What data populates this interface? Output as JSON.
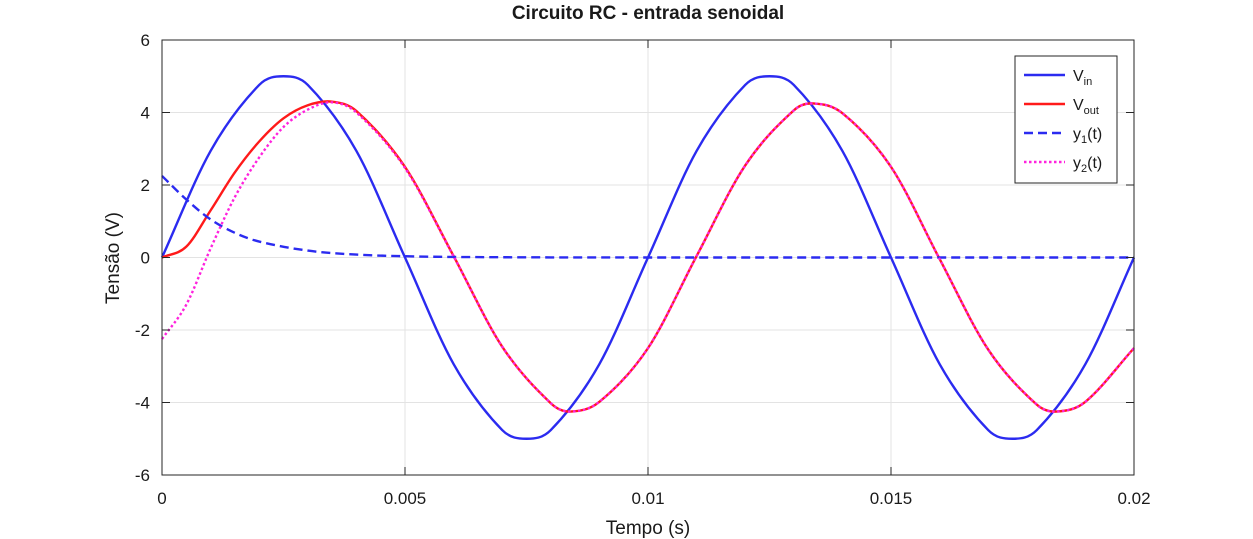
{
  "chart_data": {
    "type": "line",
    "title": "Circuito RC - entrada senoidal",
    "xlabel": "Tempo (s)",
    "ylabel": "Tensão (V)",
    "xlim": [
      0,
      0.02
    ],
    "ylim": [
      -6,
      6
    ],
    "xticks": [
      0,
      0.005,
      0.01,
      0.015,
      0.02
    ],
    "xtick_labels": [
      "0",
      "0.005",
      "0.01",
      "0.015",
      "0.02"
    ],
    "yticks": [
      -6,
      -4,
      -2,
      0,
      2,
      4,
      6
    ],
    "ytick_labels": [
      "-6",
      "-4",
      "-2",
      "0",
      "2",
      "4",
      "6"
    ],
    "grid": true,
    "legend_position": "top-right",
    "series": [
      {
        "key": "vin",
        "legend_main": "V",
        "legend_sub": "in",
        "legend_tail": "",
        "color": "#2b2bf0",
        "style": "solid",
        "x": [
          0,
          0.001,
          0.002,
          0.0025,
          0.003,
          0.004,
          0.005,
          0.006,
          0.007,
          0.0075,
          0.008,
          0.009,
          0.01,
          0.011,
          0.012,
          0.0125,
          0.013,
          0.014,
          0.015,
          0.016,
          0.017,
          0.0175,
          0.018,
          0.019,
          0.02
        ],
        "y": [
          0,
          2.94,
          4.76,
          5.0,
          4.76,
          2.94,
          0,
          -2.94,
          -4.76,
          -5.0,
          -4.76,
          -2.94,
          0,
          2.94,
          4.76,
          5.0,
          4.76,
          2.94,
          0,
          -2.94,
          -4.76,
          -5.0,
          -4.76,
          -2.94,
          0
        ]
      },
      {
        "key": "vout",
        "legend_main": "V",
        "legend_sub": "out",
        "legend_tail": "",
        "color": "#ff1a1a",
        "style": "solid",
        "x": [
          0,
          0.0005,
          0.001,
          0.0015,
          0.002,
          0.0025,
          0.003,
          0.0035,
          0.004,
          0.005,
          0.006,
          0.007,
          0.008,
          0.0084,
          0.009,
          0.01,
          0.011,
          0.012,
          0.013,
          0.0134,
          0.014,
          0.015,
          0.016,
          0.017,
          0.018,
          0.0184,
          0.019,
          0.02
        ],
        "y": [
          0,
          0.3,
          1.3,
          2.35,
          3.2,
          3.84,
          4.2,
          4.3,
          4.04,
          2.5,
          0.04,
          -2.46,
          -4.02,
          -4.25,
          -3.98,
          -2.5,
          0.04,
          2.54,
          4.06,
          4.25,
          3.98,
          2.5,
          -0.04,
          -2.54,
          -4.06,
          -4.25,
          -3.98,
          -2.5
        ]
      },
      {
        "key": "y1",
        "legend_main": "y",
        "legend_sub": "1",
        "legend_tail": "(t)",
        "color": "#2b2bf0",
        "style": "dashed",
        "x": [
          0,
          0.0005,
          0.001,
          0.0015,
          0.002,
          0.003,
          0.004,
          0.005,
          0.006,
          0.008,
          0.01,
          0.012,
          0.014,
          0.016,
          0.018,
          0.02
        ],
        "y": [
          2.25,
          1.6,
          1.05,
          0.68,
          0.44,
          0.19,
          0.08,
          0.035,
          0.015,
          0.003,
          0,
          0,
          0,
          0,
          0,
          0
        ]
      },
      {
        "key": "y2",
        "legend_main": "y",
        "legend_sub": "2",
        "legend_tail": "(t)",
        "color": "#ff22dd",
        "style": "dotted",
        "x": [
          0,
          0.0005,
          0.001,
          0.0015,
          0.002,
          0.0025,
          0.003,
          0.0035,
          0.004,
          0.005,
          0.006,
          0.007,
          0.008,
          0.0084,
          0.009,
          0.01,
          0.011,
          0.012,
          0.013,
          0.0134,
          0.014,
          0.015,
          0.016,
          0.017,
          0.018,
          0.0184,
          0.019,
          0.02
        ],
        "y": [
          -2.25,
          -1.3,
          0.25,
          1.67,
          2.76,
          3.6,
          4.08,
          4.28,
          4.0,
          2.47,
          0.03,
          -2.46,
          -4.02,
          -4.25,
          -3.98,
          -2.5,
          0.04,
          2.54,
          4.06,
          4.25,
          3.98,
          2.5,
          -0.04,
          -2.54,
          -4.06,
          -4.25,
          -3.98,
          -2.5
        ]
      }
    ]
  }
}
